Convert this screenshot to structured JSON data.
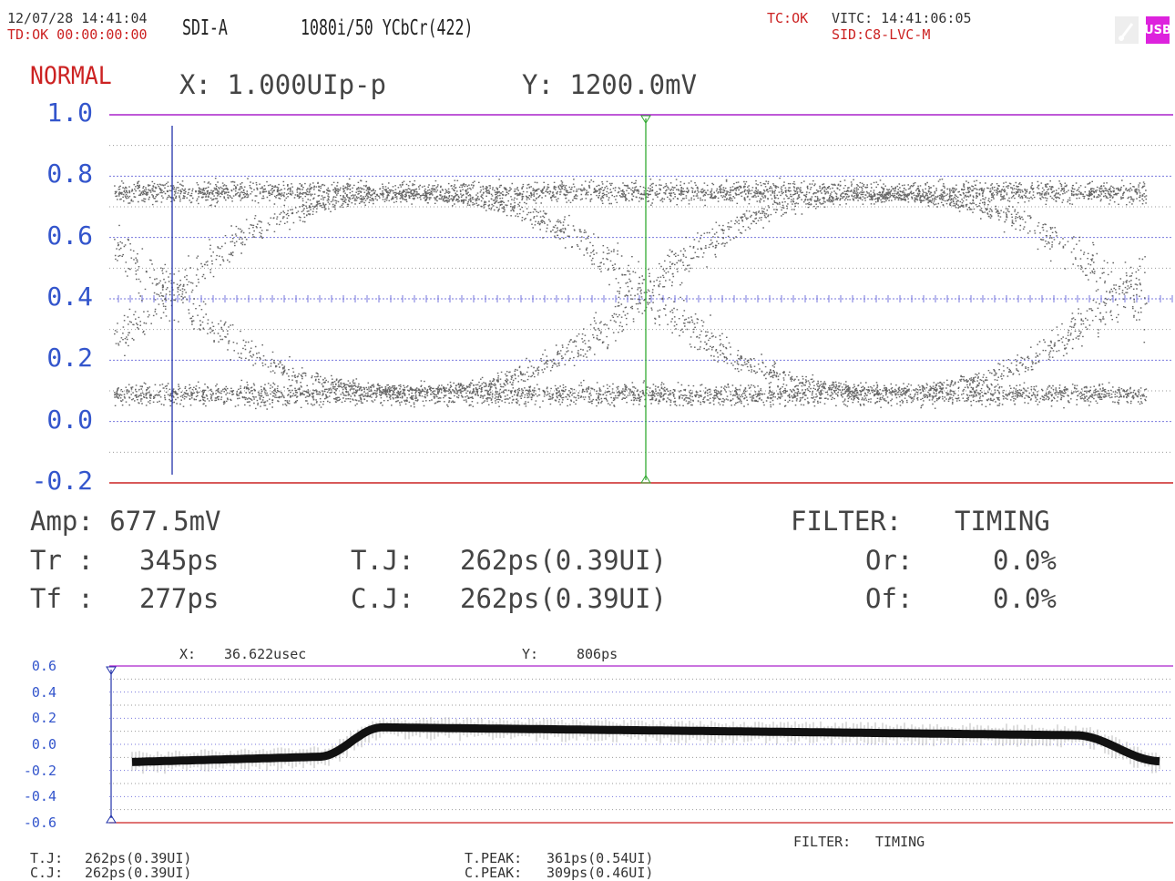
{
  "header": {
    "datetime": "12/07/28 14:41:04",
    "td_status": "TD:OK  00:00:00:00",
    "sdi_input": "SDI-A",
    "format": "1080i/50 YCbCr(422)",
    "tc_status": "TC:OK",
    "vitc": "VITC: 14:41:06:05",
    "sid": "SID:C8-LVC-M",
    "usb_label": "USB",
    "usb_icon": "usb-plug-icon",
    "colors": {
      "alert_red": "#cc2222",
      "usb_magenta": "#dd22dd",
      "axis_blue": "#3355cc"
    }
  },
  "eye": {
    "mode": "NORMAL",
    "x_scale": "X: 1.000UIp-p",
    "y_scale": "Y: 1200.0mV",
    "y_ticks": [
      "1.0",
      "0.8",
      "0.6",
      "0.4",
      "0.2",
      "0.0",
      "-0.2"
    ],
    "cursor_colors": {
      "x1": "#2233aa",
      "x2": "#33aa33",
      "top": "#aa22cc",
      "bottom": "#cc2222"
    }
  },
  "measurements": {
    "amp": "Amp: 677.5mV",
    "tr_label": "Tr  :",
    "tr_value": "345ps",
    "tf_label": "Tf  :",
    "tf_value": "277ps",
    "tj_label": "T.J:",
    "tj_value": "262ps(0.39UI)",
    "cj_label": "C.J:",
    "cj_value": "262ps(0.39UI)",
    "filter_label": "FILTER:",
    "filter_value": "TIMING",
    "or_label": "Or:",
    "or_value": "0.0%",
    "of_label": "Of:",
    "of_value": "0.0%"
  },
  "jitter": {
    "x_label": "X:",
    "x_value": "36.622usec",
    "y_label": "Y:",
    "y_value": "806ps",
    "y_ticks": [
      "0.6",
      "0.4",
      "0.2",
      "0.0",
      "-0.2",
      "-0.4",
      "-0.6"
    ],
    "filter_label": "FILTER:",
    "filter_value": "TIMING",
    "tj_label": "T.J:",
    "tj_value": "262ps(0.39UI)",
    "cj_label": "C.J:",
    "cj_value": "262ps(0.39UI)",
    "tpeak_label": "T.PEAK:",
    "tpeak_value": "361ps(0.54UI)",
    "cpeak_label": "C.PEAK:",
    "cpeak_value": "309ps(0.46UI)"
  }
}
